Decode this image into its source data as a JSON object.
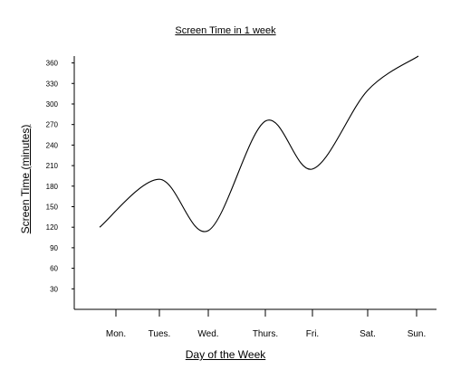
{
  "chart_data": {
    "type": "line",
    "title": "Screen Time in 1 week",
    "xlabel": "Day of the Week",
    "ylabel": "Screen Time (minutes)",
    "categories": [
      "Mon.",
      "Tues.",
      "Wed.",
      "Thurs.",
      "Fri.",
      "Sat.",
      "Sun."
    ],
    "yticks": [
      30,
      60,
      90,
      120,
      150,
      180,
      210,
      240,
      270,
      300,
      330,
      360
    ],
    "ylim": [
      0,
      370
    ],
    "grid": false,
    "series": [
      {
        "x": [
          "Mon.",
          "Tues.",
          "Wed.",
          "Thurs.",
          "Fri.",
          "Sat.",
          "Sun."
        ],
        "values": [
          120,
          190,
          115,
          275,
          205,
          320,
          370
        ]
      }
    ],
    "colors": {
      "line": "#000000",
      "axis": "#000000"
    }
  }
}
